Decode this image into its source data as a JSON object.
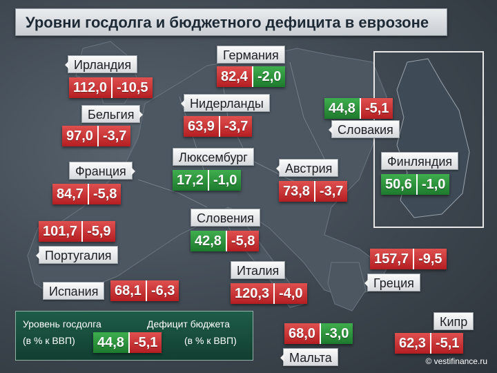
{
  "title": "Уровни госдолга и бюджетного дефицита в еврозоне",
  "countries": [
    {
      "id": "ireland",
      "name": "Ирландия",
      "debt": "112,0",
      "deficit": "-10,5",
      "debt_color": "red",
      "deficit_color": "red"
    },
    {
      "id": "germany",
      "name": "Германия",
      "debt": "82,4",
      "deficit": "-2,0",
      "debt_color": "red",
      "deficit_color": "green"
    },
    {
      "id": "belgium",
      "name": "Бельгия",
      "debt": "97,0",
      "deficit": "-3,7",
      "debt_color": "red",
      "deficit_color": "red"
    },
    {
      "id": "netherlands",
      "name": "Нидерланды",
      "debt": "63,9",
      "deficit": "-3,7",
      "debt_color": "red",
      "deficit_color": "red"
    },
    {
      "id": "slovakia",
      "name": "Словакия",
      "debt": "44,8",
      "deficit": "-5,1",
      "debt_color": "green",
      "deficit_color": "red"
    },
    {
      "id": "france",
      "name": "Франция",
      "debt": "84,7",
      "deficit": "-5,8",
      "debt_color": "red",
      "deficit_color": "red"
    },
    {
      "id": "luxembourg",
      "name": "Люксембург",
      "debt": "17,2",
      "deficit": "-1,0",
      "debt_color": "green",
      "deficit_color": "green"
    },
    {
      "id": "austria",
      "name": "Австрия",
      "debt": "73,8",
      "deficit": "-3,7",
      "debt_color": "red",
      "deficit_color": "red"
    },
    {
      "id": "finland",
      "name": "Финляндия",
      "debt": "50,6",
      "deficit": "-1,0",
      "debt_color": "green",
      "deficit_color": "green"
    },
    {
      "id": "portugal",
      "name": "Португалия",
      "debt": "101,7",
      "deficit": "-5,9",
      "debt_color": "red",
      "deficit_color": "red"
    },
    {
      "id": "slovenia",
      "name": "Словения",
      "debt": "42,8",
      "deficit": "-5,8",
      "debt_color": "green",
      "deficit_color": "red"
    },
    {
      "id": "greece",
      "name": "Греция",
      "debt": "157,7",
      "deficit": "-9,5",
      "debt_color": "red",
      "deficit_color": "red"
    },
    {
      "id": "italy",
      "name": "Италия",
      "debt": "120,3",
      "deficit": "-4,0",
      "debt_color": "red",
      "deficit_color": "red"
    },
    {
      "id": "spain",
      "name": "Испания",
      "debt": "68,1",
      "deficit": "-6,3",
      "debt_color": "red",
      "deficit_color": "red"
    },
    {
      "id": "cyprus",
      "name": "Кипр",
      "debt": "62,3",
      "deficit": "-5,1",
      "debt_color": "red",
      "deficit_color": "red"
    },
    {
      "id": "malta",
      "name": "Мальта",
      "debt": "68,0",
      "deficit": "-3,0",
      "debt_color": "red",
      "deficit_color": "green"
    }
  ],
  "legend": {
    "debt_title": "Уровень госдолга",
    "debt_unit": "(в % к ВВП)",
    "deficit_title": "Дефицит бюджета",
    "deficit_unit": "(в % к ВВП)",
    "sample_debt": "44,8",
    "sample_deficit": "-5,1"
  },
  "colors": {
    "red": "#c8282b",
    "green": "#2a8f3b",
    "legend_bg": "#17493a"
  },
  "copyright": "© vestifinance.ru"
}
